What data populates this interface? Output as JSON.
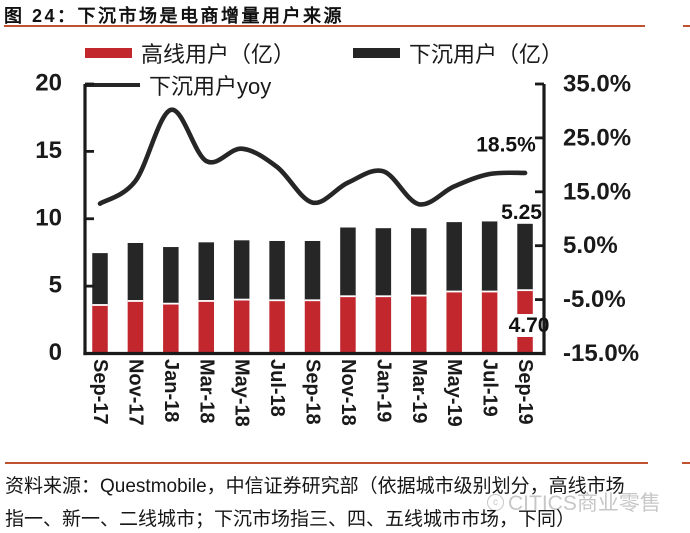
{
  "header": {
    "title": "图 24：下沉市场是电商增量用户来源"
  },
  "legend": [
    {
      "label": "高线用户（亿）"
    },
    {
      "label": "下沉用户（亿）"
    },
    {
      "label": "下沉用户yoy"
    }
  ],
  "chart_data": {
    "type": "bar+line",
    "categories": [
      "Sep-17",
      "Nov-17",
      "Jan-18",
      "Mar-18",
      "May-18",
      "Jul-18",
      "Sep-18",
      "Nov-18",
      "Jan-19",
      "Mar-19",
      "May-19",
      "Jul-19",
      "Sep-19"
    ],
    "series": [
      {
        "name": "高线用户（亿）",
        "type": "bar",
        "stack": "users",
        "color": "#c1272d",
        "values": [
          3.6,
          3.9,
          3.7,
          3.9,
          4.0,
          3.95,
          3.95,
          4.25,
          4.25,
          4.3,
          4.6,
          4.6,
          4.7
        ]
      },
      {
        "name": "下沉用户（亿）",
        "type": "bar",
        "stack": "users",
        "color": "#262626",
        "values": [
          3.85,
          4.3,
          4.2,
          4.35,
          4.4,
          4.4,
          4.4,
          5.1,
          5.05,
          5.0,
          5.15,
          5.2,
          5.25
        ]
      },
      {
        "name": "下沉用户yoy",
        "type": "line",
        "axis": "right",
        "color": "#262626",
        "values": [
          12.8,
          17.0,
          30.2,
          20.7,
          23.0,
          19.6,
          13.0,
          16.7,
          18.8,
          12.7,
          16.0,
          18.3,
          18.5
        ]
      }
    ],
    "left_axis": {
      "min": 0,
      "max": 20,
      "ticks": [
        "20",
        "15",
        "10",
        "5",
        "0"
      ]
    },
    "right_axis": {
      "min": -15,
      "max": 35,
      "ticks": [
        "35.0%",
        "25.0%",
        "15.0%",
        "5.0%",
        "-5.0%",
        "-15.0%"
      ]
    },
    "annotations": [
      "18.5%",
      "5.25",
      "4.70"
    ],
    "grid": false,
    "legend_position": "top"
  },
  "footer": {
    "source_line1": "资料来源：Questmobile，中信证券研究部（依据城市级别划分，高线市场",
    "source_line2": "指一、新一、二线城市；下沉市场指三、四、五线城市市场，下同）",
    "watermark": "CITICS商业零售"
  }
}
